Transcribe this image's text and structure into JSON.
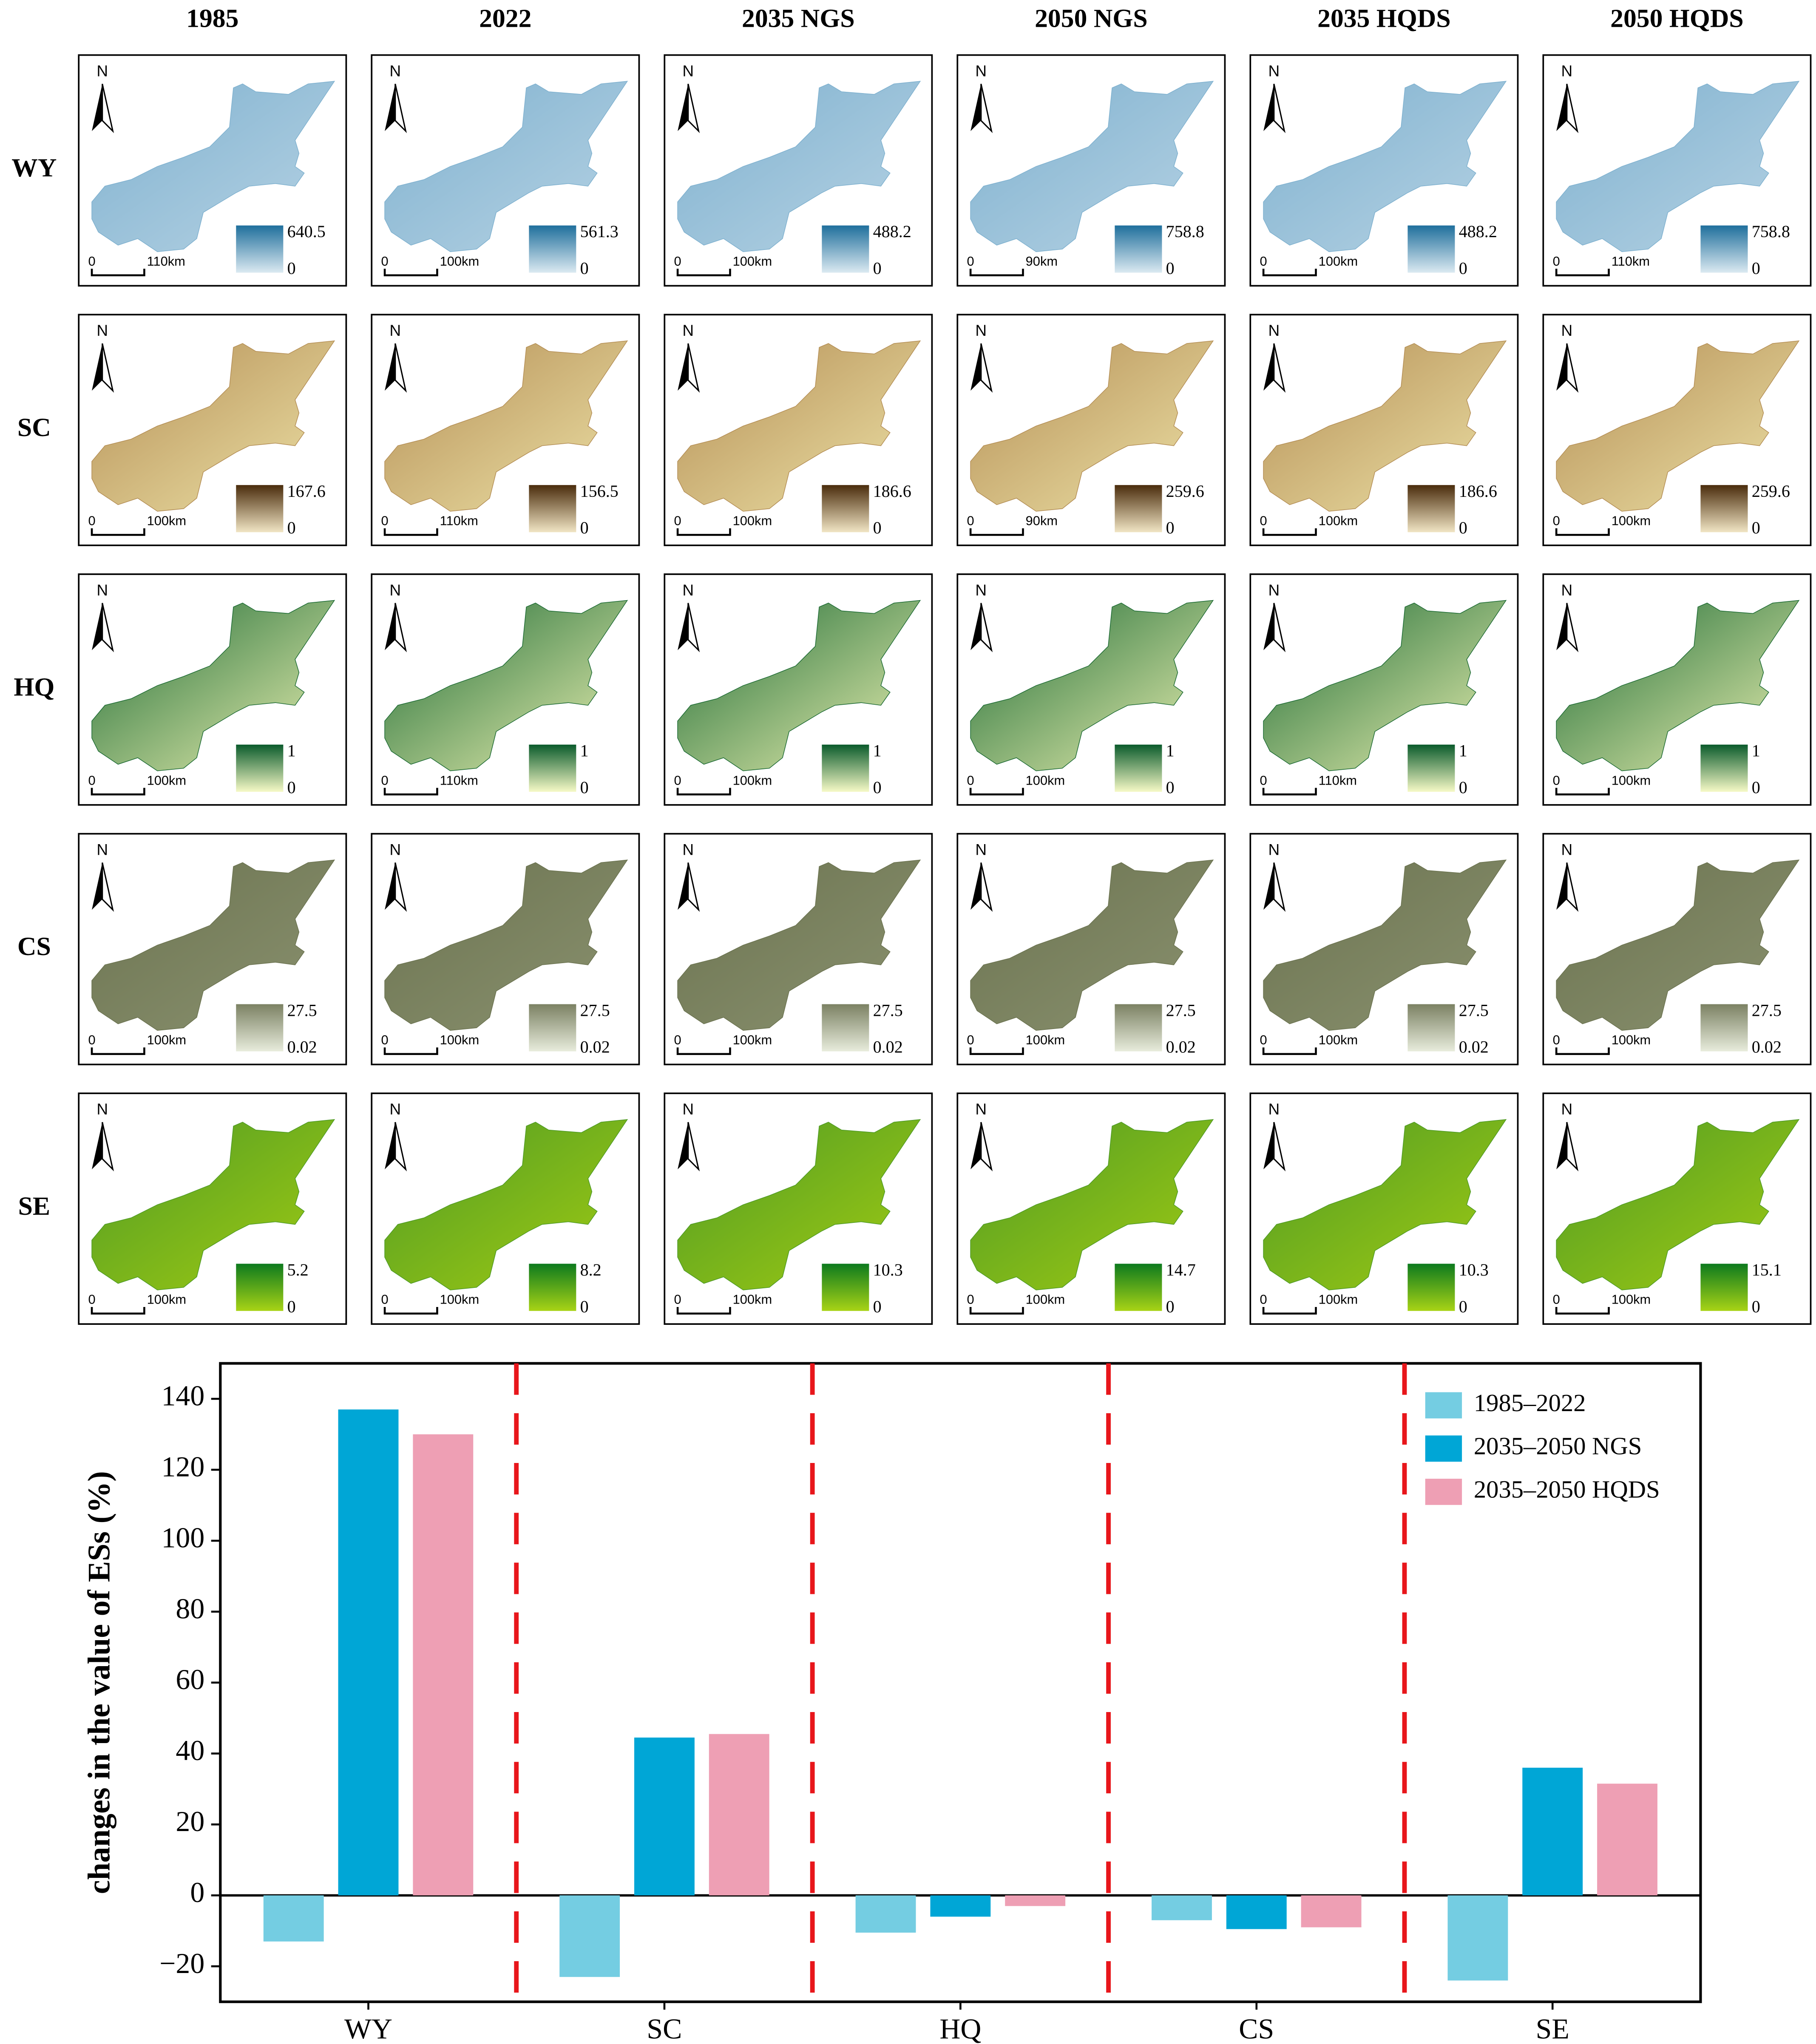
{
  "maps": {
    "north_label": "N",
    "scale_zero": "0",
    "columns": [
      "1985",
      "2022",
      "2035 NGS",
      "2050 NGS",
      "2035 HQDS",
      "2050 HQDS"
    ],
    "rows": [
      {
        "label": "WY",
        "legend_max": [
          "640.5",
          "561.3",
          "488.2",
          "758.8",
          "488.2",
          "758.8"
        ],
        "legend_min": [
          "0",
          "0",
          "0",
          "0",
          "0",
          "0"
        ],
        "scale_bars": [
          "110km",
          "100km",
          "100km",
          "90km",
          "100km",
          "110km"
        ]
      },
      {
        "label": "SC",
        "legend_max": [
          "167.6",
          "156.5",
          "186.6",
          "259.6",
          "186.6",
          "259.6"
        ],
        "legend_min": [
          "0",
          "0",
          "0",
          "0",
          "0",
          "0"
        ],
        "scale_bars": [
          "100km",
          "110km",
          "100km",
          "90km",
          "100km",
          "100km"
        ]
      },
      {
        "label": "HQ",
        "legend_max": [
          "1",
          "1",
          "1",
          "1",
          "1",
          "1"
        ],
        "legend_min": [
          "0",
          "0",
          "0",
          "0",
          "0",
          "0"
        ],
        "scale_bars": [
          "100km",
          "110km",
          "100km",
          "100km",
          "110km",
          "100km"
        ]
      },
      {
        "label": "CS",
        "legend_max": [
          "27.5",
          "27.5",
          "27.5",
          "27.5",
          "27.5",
          "27.5"
        ],
        "legend_min": [
          "0.02",
          "0.02",
          "0.02",
          "0.02",
          "0.02",
          "0.02"
        ],
        "scale_bars": [
          "100km",
          "100km",
          "100km",
          "100km",
          "100km",
          "100km"
        ]
      },
      {
        "label": "SE",
        "legend_max": [
          "5.2",
          "8.2",
          "10.3",
          "14.7",
          "10.3",
          "15.1"
        ],
        "legend_min": [
          "0",
          "0",
          "0",
          "0",
          "0",
          "0"
        ],
        "scale_bars": [
          "100km",
          "100km",
          "100km",
          "100km",
          "100km",
          "100km"
        ]
      }
    ]
  },
  "chart_data": {
    "type": "bar",
    "y_label": "changes in the value of ESs (%)",
    "categories": [
      "WY",
      "SC",
      "HQ",
      "CS",
      "SE"
    ],
    "series": [
      {
        "name": "1985–2022",
        "color": "#74cde2",
        "values": [
          -13,
          -23,
          -10.5,
          -7,
          -24
        ]
      },
      {
        "name": "2035–2050 NGS",
        "color": "#00a6d6",
        "values": [
          137,
          44.5,
          -6,
          -9.5,
          36
        ]
      },
      {
        "name": "2035–2050 HQDS",
        "color": "#ee9fb4",
        "values": [
          130,
          45.5,
          -3,
          -9,
          31.5
        ]
      }
    ],
    "ylim": [
      -30,
      150
    ],
    "yticks": [
      {
        "value": -20,
        "label": "−20"
      },
      0,
      20,
      40,
      60,
      80,
      100,
      120,
      140
    ],
    "legend": "upper right"
  }
}
